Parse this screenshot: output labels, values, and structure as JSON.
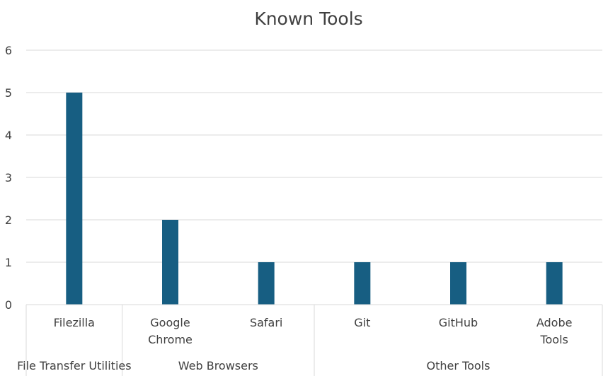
{
  "chart_data": {
    "type": "bar",
    "title": "Known Tools",
    "xlabel": "",
    "ylabel": "",
    "ylim": [
      0,
      6
    ],
    "yticks": [
      0,
      1,
      2,
      3,
      4,
      5,
      6
    ],
    "grid": true,
    "legend": "none",
    "bar_color": "#175e82",
    "gridline_color": "#d9d9d9",
    "groups": [
      {
        "label": "File Transfer Utilities",
        "categories": [
          {
            "label_lines": [
              "Filezilla"
            ],
            "value": 5
          }
        ]
      },
      {
        "label": "Web Browsers",
        "categories": [
          {
            "label_lines": [
              "Google",
              "Chrome"
            ],
            "value": 2
          },
          {
            "label_lines": [
              "Safari"
            ],
            "value": 1
          }
        ]
      },
      {
        "label": "Other Tools",
        "categories": [
          {
            "label_lines": [
              "Git"
            ],
            "value": 1
          },
          {
            "label_lines": [
              "GitHub"
            ],
            "value": 1
          },
          {
            "label_lines": [
              "Adobe",
              "Tools"
            ],
            "value": 1
          }
        ]
      }
    ]
  }
}
